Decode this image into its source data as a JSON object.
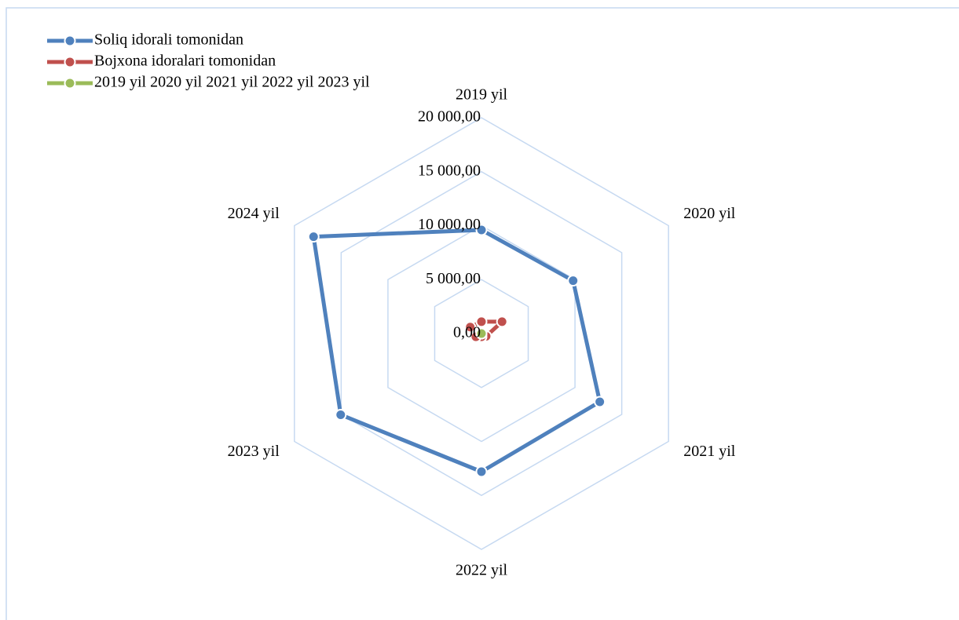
{
  "chart_data": {
    "type": "radar",
    "categories": [
      "2019 yil",
      "2020 yil",
      "2021 yil",
      "2022 yil",
      "2023 yil",
      "2024 yil"
    ],
    "series": [
      {
        "name": "Soliq idorali tomonidan",
        "color": "#4f81bd",
        "values": [
          9600,
          9800,
          12650,
          12800,
          15050,
          17950
        ]
      },
      {
        "name": "Bojxona idoralari tomonidan",
        "color": "#c0504d",
        "values": [
          1100,
          2200,
          500,
          300,
          600,
          1200
        ]
      },
      {
        "name": "2019 yil 2020 yil 2021 yil 2022 yil 2023 yil",
        "color": "#9bbb59",
        "values": [
          0,
          0,
          0,
          0,
          0,
          0
        ]
      }
    ],
    "ylim": [
      0,
      20000
    ],
    "yticks": [
      {
        "value": 0,
        "label": "0,00"
      },
      {
        "value": 5000,
        "label": "5 000,00"
      },
      {
        "value": 10000,
        "label": "10 000,00"
      },
      {
        "value": 15000,
        "label": "15 000,00"
      },
      {
        "value": 20000,
        "label": "20 000,00"
      }
    ],
    "grid": true,
    "legend": "top-left"
  }
}
